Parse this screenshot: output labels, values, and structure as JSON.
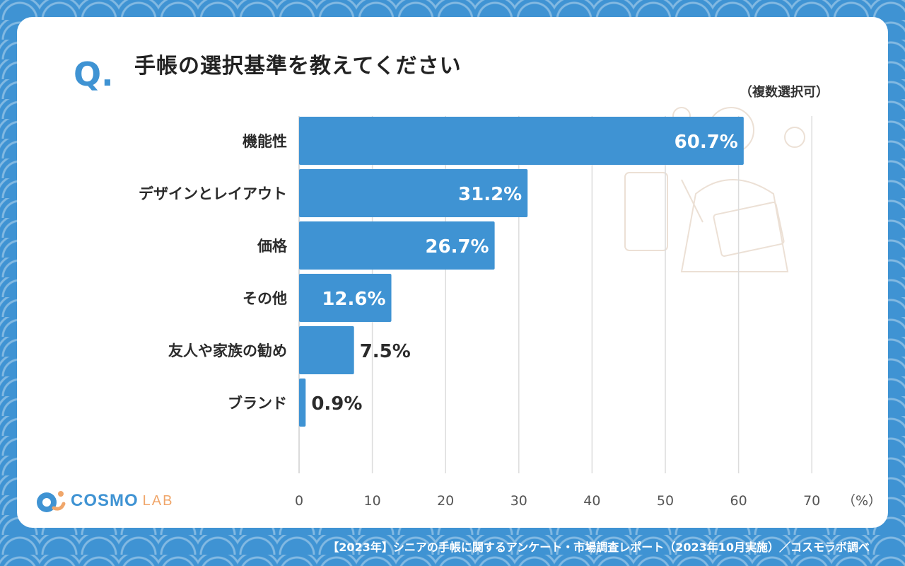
{
  "question_mark": "Q.",
  "note": "（複数選択可）",
  "logo": {
    "word1": "COSMO",
    "word2": "LAB"
  },
  "footer": "【2023年】シニアの手帳に関するアンケート・市場調査レポート（2023年10月実施）／コスモラボ調べ",
  "colors": {
    "bar": "#3f93d3",
    "background": "#3f93d3",
    "accent": "#f0a66a"
  },
  "chart_data": {
    "type": "bar",
    "orientation": "horizontal",
    "title": "手帳の選択基準を教えてください",
    "categories": [
      "機能性",
      "デザインとレイアウト",
      "価格",
      "その他",
      "友人や家族の勧め",
      "ブランド"
    ],
    "values": [
      60.7,
      31.2,
      26.7,
      12.6,
      7.5,
      0.9
    ],
    "value_labels": [
      "60.7%",
      "31.2%",
      "26.7%",
      "12.6%",
      "7.5%",
      "0.9%"
    ],
    "xlim": [
      0,
      70
    ],
    "xticks": [
      "0",
      "10",
      "20",
      "30",
      "40",
      "50",
      "60",
      "70"
    ],
    "xunit": "（%）",
    "grid": true
  }
}
